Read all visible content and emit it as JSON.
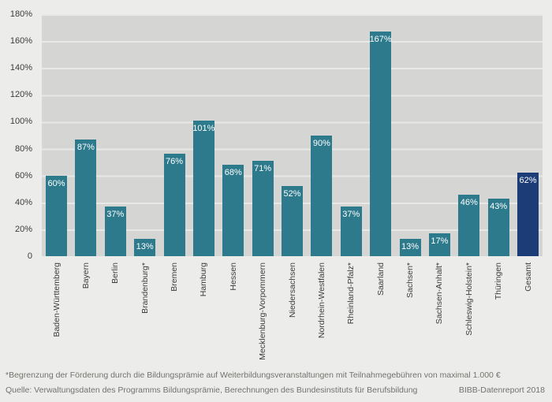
{
  "chart_data": {
    "type": "bar",
    "title": "",
    "categories": [
      "Baden-Württemberg",
      "Bayern",
      "Berlin",
      "Brandenburg*",
      "Bremen",
      "Hamburg",
      "Hessen",
      "Mecklenburg-Vorpommern",
      "Niedersachsen",
      "Nordrhein-Westfalen",
      "Rheinland-Pfalz*",
      "Saarland",
      "Sachsen*",
      "Sachsen-Anhalt*",
      "Schleswig-Holstein*",
      "Thüringen",
      "Gesamt"
    ],
    "values": [
      60,
      87,
      37,
      13,
      76,
      101,
      68,
      71,
      52,
      90,
      37,
      167,
      13,
      17,
      46,
      43,
      62
    ],
    "value_labels": [
      "60%",
      "87%",
      "37%",
      "13%",
      "76%",
      "101%",
      "68%",
      "71%",
      "52%",
      "90%",
      "37%",
      "167%",
      "13%",
      "17%",
      "46%",
      "43%",
      "62%"
    ],
    "yticks": [
      "180%",
      "160%",
      "140%",
      "120%",
      "100%",
      "80%",
      "60%",
      "40%",
      "20%",
      "0"
    ],
    "ylim": [
      0,
      180
    ],
    "grid": true,
    "legend": "none",
    "bar_color": "#2d7a8c",
    "total_bar_color": "#1c3c78",
    "total_category": "Gesamt"
  },
  "footer": {
    "footnote": "*Begrenzung der Förderung durch die Bildungsprämie auf Weiterbildungsveranstaltungen mit Teilnahmegebühren von maximal 1.000 €",
    "source": "Quelle: Verwaltungsdaten des Programms Bildungsprämie, Berechnungen des Bundesinstituts für Berufsbildung",
    "report": "BIBB-Datenreport 2018"
  }
}
